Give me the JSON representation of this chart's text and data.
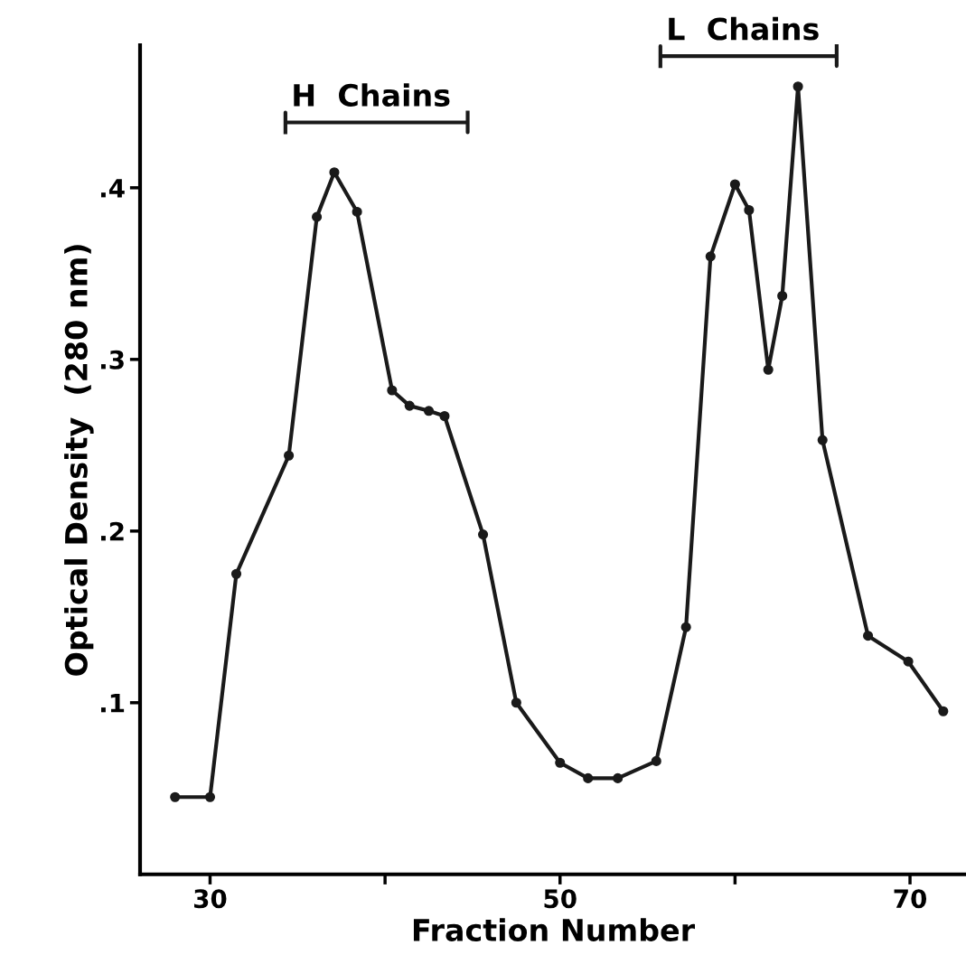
{
  "chart_data": {
    "type": "line",
    "xlabel": "Fraction Number",
    "ylabel": "Optical Density  (280 nm)",
    "x": [
      28,
      30,
      31.5,
      34.5,
      36.1,
      37.1,
      38.4,
      40.4,
      41.4,
      42.5,
      43.4,
      45.6,
      47.5,
      50,
      51.6,
      53.3,
      55.5,
      57.2,
      58.6,
      60,
      60.8,
      61.9,
      62.7,
      63.6,
      65,
      67.6,
      69.9,
      71.9
    ],
    "series": [
      {
        "color": "#1a1a1a",
        "values": [
          0.045,
          0.045,
          0.175,
          0.244,
          0.383,
          0.409,
          0.386,
          0.282,
          0.273,
          0.27,
          0.267,
          0.198,
          0.1,
          0.065,
          0.056,
          0.056,
          0.066,
          0.144,
          0.36,
          0.402,
          0.387,
          0.294,
          0.337,
          0.459,
          0.253,
          0.139,
          0.124,
          0.095
        ]
      }
    ],
    "xlim": [
      26,
      73.2
    ],
    "ylim": [
      0,
      0.483
    ],
    "xticks": [
      30,
      {
        "value": 40,
        "label": null
      },
      50,
      {
        "value": 60,
        "label": null
      },
      70
    ],
    "yticks": [
      {
        "value": 0.1,
        "label": ".1"
      },
      {
        "value": 0.2,
        "label": ".2"
      },
      {
        "value": 0.3,
        "label": ".3"
      },
      {
        "value": 0.4,
        "label": ".4"
      }
    ],
    "annotations": [
      "H  Chains",
      "L  Chains"
    ],
    "marker": "circle",
    "line_style": "solid",
    "grid": false,
    "legend": false
  }
}
